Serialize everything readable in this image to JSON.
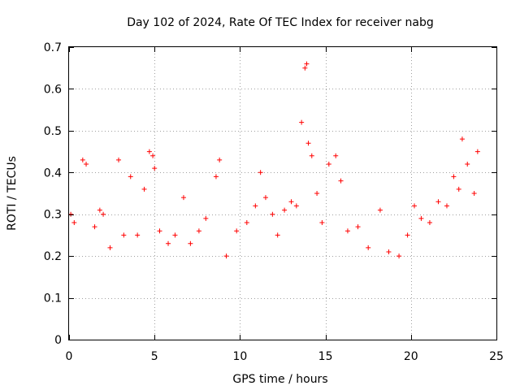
{
  "chart_data": {
    "type": "scatter",
    "title": "Day 102 of 2024, Rate Of TEC Index for receiver nabg",
    "xlabel": "GPS time / hours",
    "ylabel": "ROTI / TECUs",
    "xlim": [
      0,
      25
    ],
    "ylim": [
      0,
      0.7
    ],
    "xticks": [
      0,
      5,
      10,
      15,
      20,
      25
    ],
    "xtick_labels": [
      "0",
      "5",
      "10",
      "15",
      "20",
      "25"
    ],
    "yticks": [
      0,
      0.1,
      0.2,
      0.3,
      0.4,
      0.5,
      0.6,
      0.7
    ],
    "ytick_labels": [
      "0",
      "0.1",
      "0.2",
      "0.3",
      "0.4",
      "0.5",
      "0.6",
      "0.7"
    ],
    "grid": true,
    "marker": "+",
    "color": "#ff0000",
    "series": [
      {
        "x": [
          0.1,
          0.3,
          0.8,
          1.0,
          1.5,
          1.8,
          2.0,
          2.4,
          2.9,
          3.2,
          3.6,
          4.0,
          4.4,
          4.7,
          4.9,
          5.0,
          5.3,
          5.8,
          6.2,
          6.7,
          7.1,
          7.6,
          8.0,
          8.6,
          8.8,
          9.2,
          9.8,
          10.4,
          10.9,
          11.2,
          11.5,
          11.9,
          12.2,
          12.6,
          13.0,
          13.3,
          13.6,
          13.8,
          13.9,
          14.0,
          14.2,
          14.5,
          14.8,
          15.2,
          15.6,
          15.9,
          16.3,
          16.9,
          17.5,
          18.2,
          18.7,
          19.3,
          19.8,
          20.2,
          20.6,
          21.1,
          21.6,
          22.1,
          22.5,
          22.8,
          23.0,
          23.3,
          23.7,
          23.9
        ],
        "y": [
          0.3,
          0.28,
          0.43,
          0.42,
          0.27,
          0.31,
          0.3,
          0.22,
          0.43,
          0.25,
          0.39,
          0.25,
          0.36,
          0.45,
          0.44,
          0.41,
          0.26,
          0.23,
          0.25,
          0.34,
          0.23,
          0.26,
          0.29,
          0.39,
          0.43,
          0.2,
          0.26,
          0.28,
          0.32,
          0.4,
          0.34,
          0.3,
          0.25,
          0.31,
          0.33,
          0.32,
          0.52,
          0.65,
          0.66,
          0.47,
          0.44,
          0.35,
          0.28,
          0.42,
          0.44,
          0.38,
          0.26,
          0.27,
          0.22,
          0.31,
          0.21,
          0.2,
          0.25,
          0.32,
          0.29,
          0.28,
          0.33,
          0.32,
          0.39,
          0.36,
          0.48,
          0.42,
          0.35,
          0.45
        ]
      }
    ]
  }
}
